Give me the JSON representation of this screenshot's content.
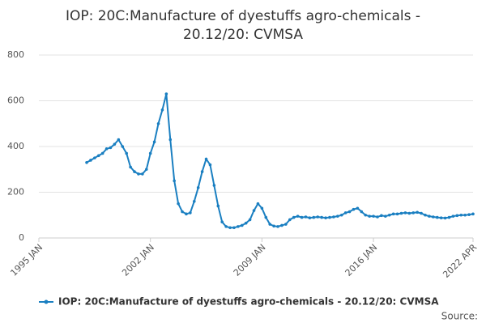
{
  "chart_data": {
    "type": "line",
    "title": [
      "IOP: 20C:Manufacture of dyestuffs agro-chemicals -",
      "20.12/20: CVMSA"
    ],
    "source": "Source:",
    "x": [
      "1998 JAN",
      "1998 APR",
      "1998 JUL",
      "1998 OCT",
      "1999 JAN",
      "1999 APR",
      "1999 JUL",
      "1999 OCT",
      "2000 JAN",
      "2000 APR",
      "2000 JUL",
      "2000 OCT",
      "2001 JAN",
      "2001 APR",
      "2001 JUL",
      "2001 OCT",
      "2002 JAN",
      "2002 APR",
      "2002 JUL",
      "2002 OCT",
      "2003 JAN",
      "2003 APR",
      "2003 JUL",
      "2003 OCT",
      "2004 JAN",
      "2004 APR",
      "2004 JUL",
      "2004 OCT",
      "2005 JAN",
      "2005 APR",
      "2005 JUL",
      "2005 OCT",
      "2006 JAN",
      "2006 APR",
      "2006 JUL",
      "2006 OCT",
      "2007 JAN",
      "2007 APR",
      "2007 JUL",
      "2007 OCT",
      "2008 JAN",
      "2008 APR",
      "2008 JUL",
      "2008 OCT",
      "2009 JAN",
      "2009 APR",
      "2009 JUL",
      "2009 OCT",
      "2010 JAN",
      "2010 APR",
      "2010 JUL",
      "2010 OCT",
      "2011 JAN",
      "2011 APR",
      "2011 JUL",
      "2011 OCT",
      "2012 JAN",
      "2012 APR",
      "2012 JUL",
      "2012 OCT",
      "2013 JAN",
      "2013 APR",
      "2013 JUL",
      "2013 OCT",
      "2014 JAN",
      "2014 APR",
      "2014 JUL",
      "2014 OCT",
      "2015 JAN",
      "2015 APR",
      "2015 JUL",
      "2015 OCT",
      "2016 JAN",
      "2016 APR",
      "2016 JUL",
      "2016 OCT",
      "2017 JAN",
      "2017 APR",
      "2017 JUL",
      "2017 OCT",
      "2018 JAN",
      "2018 APR",
      "2018 JUL",
      "2018 OCT",
      "2019 JAN",
      "2019 APR",
      "2019 JUL",
      "2019 OCT",
      "2020 JAN",
      "2020 APR",
      "2020 JUL",
      "2020 OCT",
      "2021 JAN",
      "2021 APR",
      "2021 JUL",
      "2021 OCT",
      "2022 JAN",
      "2022 APR"
    ],
    "series": [
      {
        "name": "IOP: 20C:Manufacture of dyestuffs agro-chemicals - 20.12/20: CVMSA",
        "color": "#1a7fc1",
        "values": [
          330,
          340,
          350,
          360,
          370,
          390,
          395,
          410,
          430,
          400,
          370,
          310,
          290,
          280,
          280,
          300,
          370,
          420,
          500,
          560,
          630,
          430,
          250,
          150,
          115,
          105,
          110,
          160,
          220,
          290,
          345,
          320,
          230,
          140,
          70,
          50,
          45,
          45,
          50,
          55,
          65,
          80,
          120,
          150,
          130,
          90,
          60,
          52,
          50,
          55,
          60,
          80,
          90,
          95,
          90,
          92,
          88,
          90,
          92,
          90,
          88,
          90,
          92,
          95,
          100,
          110,
          115,
          125,
          130,
          115,
          100,
          95,
          95,
          92,
          98,
          95,
          100,
          105,
          105,
          108,
          110,
          108,
          110,
          112,
          108,
          100,
          95,
          92,
          90,
          88,
          87,
          90,
          95,
          98,
          100,
          100,
          102,
          105
        ]
      }
    ],
    "xlim": [
      "1995 JAN",
      "2022 APR"
    ],
    "xticks": [
      "1995 JAN",
      "2002 JAN",
      "2009 JAN",
      "2016 JAN",
      "2022 APR"
    ],
    "ylim": [
      0,
      800
    ],
    "yticks": [
      0,
      200,
      400,
      600,
      800
    ],
    "grid": true
  }
}
